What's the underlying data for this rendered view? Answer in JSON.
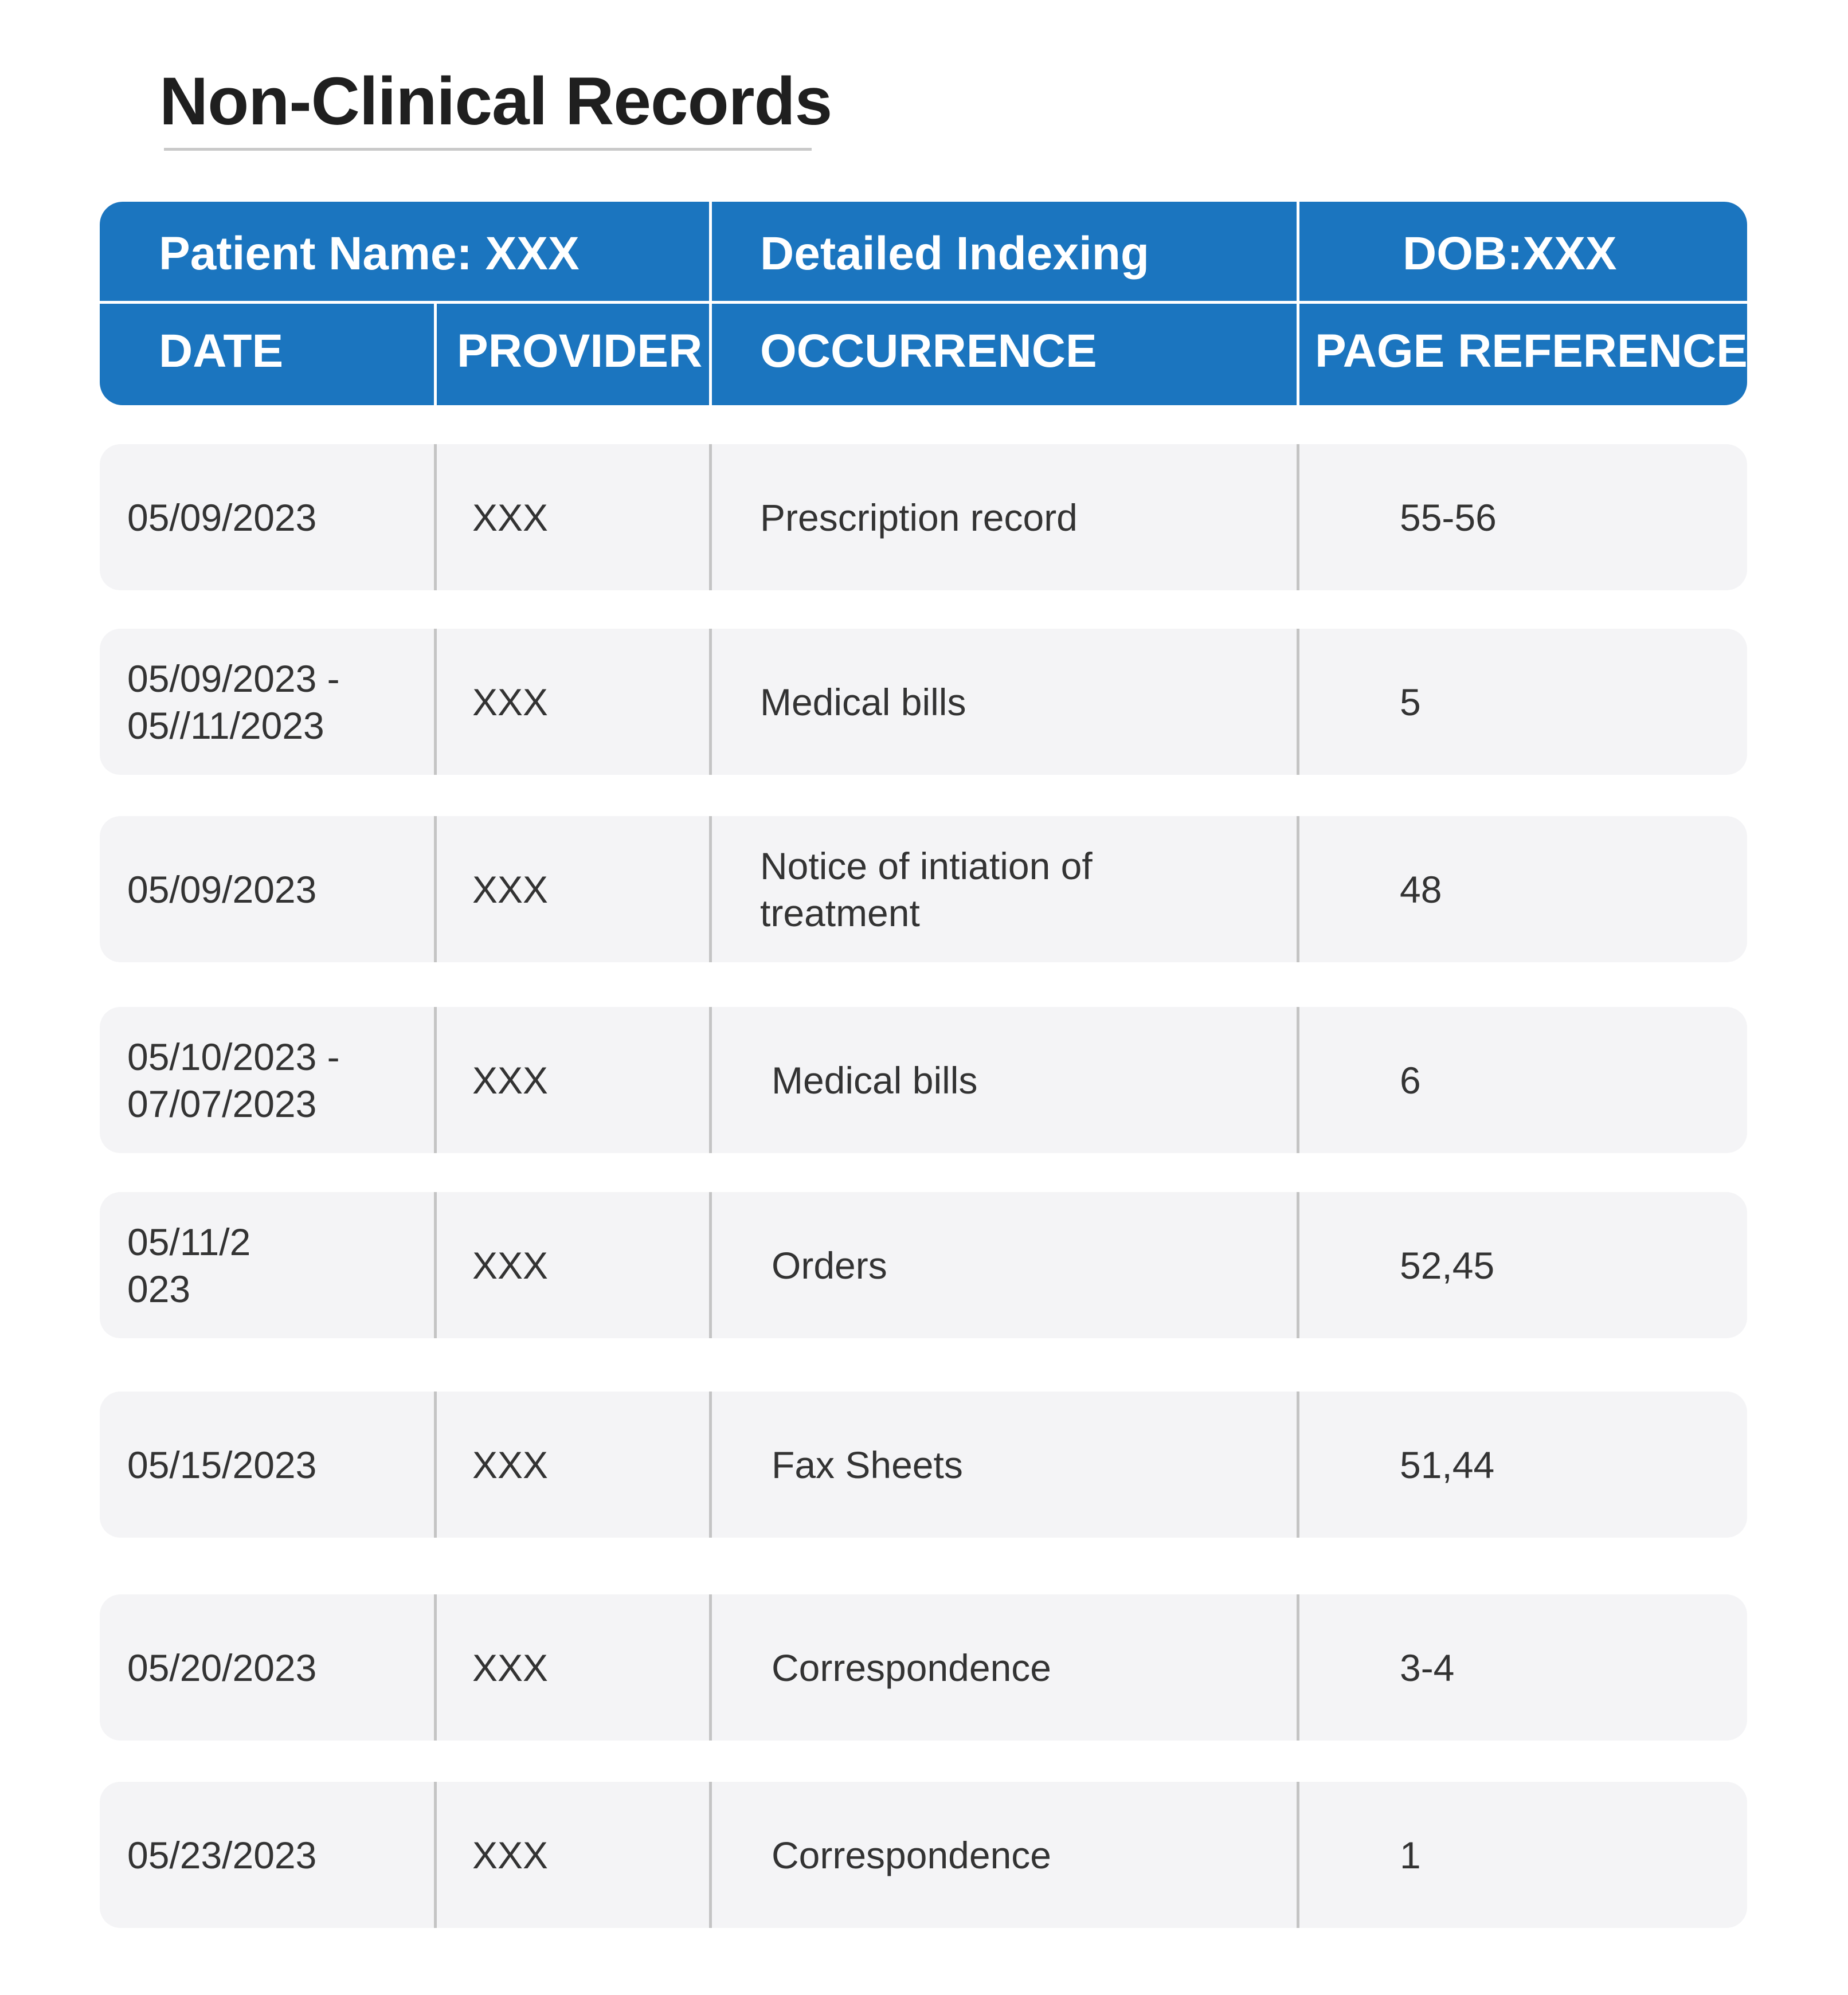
{
  "title": "Non-Clinical Records",
  "header": {
    "patient_name": "Patient Name: XXX",
    "detailed_indexing": "Detailed Indexing",
    "dob": "DOB:XXX",
    "columns": {
      "date": "DATE",
      "provider": "PROVIDER",
      "occurrence": "OCCURRENCE",
      "page_reference": "PAGE REFERENCE"
    }
  },
  "rows": [
    {
      "date_line1": "05/09/2023",
      "date_line2": "",
      "provider": "XXX",
      "occurrence_line1": "Prescription record",
      "occurrence_line2": "",
      "page_reference": "55-56"
    },
    {
      "date_line1": "05/09/2023 -",
      "date_line2": "05//11/2023",
      "provider": "XXX",
      "occurrence_line1": "Medical bills",
      "occurrence_line2": "",
      "page_reference": "5"
    },
    {
      "date_line1": "05/09/2023",
      "date_line2": "",
      "provider": "XXX",
      "occurrence_line1": "Notice of intiation of",
      "occurrence_line2": "treatment",
      "page_reference": "48"
    },
    {
      "date_line1": "05/10/2023 -",
      "date_line2": "07/07/2023",
      "provider": "XXX",
      "occurrence_line1": "Medical bills",
      "occurrence_line2": "",
      "page_reference": "6"
    },
    {
      "date_line1": "05/11/2",
      "date_line2": "023",
      "provider": "XXX",
      "occurrence_line1": "Orders",
      "occurrence_line2": "",
      "page_reference": "52,45"
    },
    {
      "date_line1": "05/15/2023",
      "date_line2": "",
      "provider": "XXX",
      "occurrence_line1": "Fax Sheets",
      "occurrence_line2": "",
      "page_reference": "51,44"
    },
    {
      "date_line1": "05/20/2023",
      "date_line2": "",
      "provider": "XXX",
      "occurrence_line1": "Correspondence",
      "occurrence_line2": "",
      "page_reference": "3-4"
    },
    {
      "date_line1": "05/23/2023",
      "date_line2": "",
      "provider": "XXX",
      "occurrence_line1": "Correspondence",
      "occurrence_line2": "",
      "page_reference": "1"
    }
  ],
  "colors": {
    "header_blue": "#1b75bf",
    "row_background": "#f4f4f6",
    "divider_gray": "#c4c4c4",
    "title_text": "#1f1f1f"
  }
}
